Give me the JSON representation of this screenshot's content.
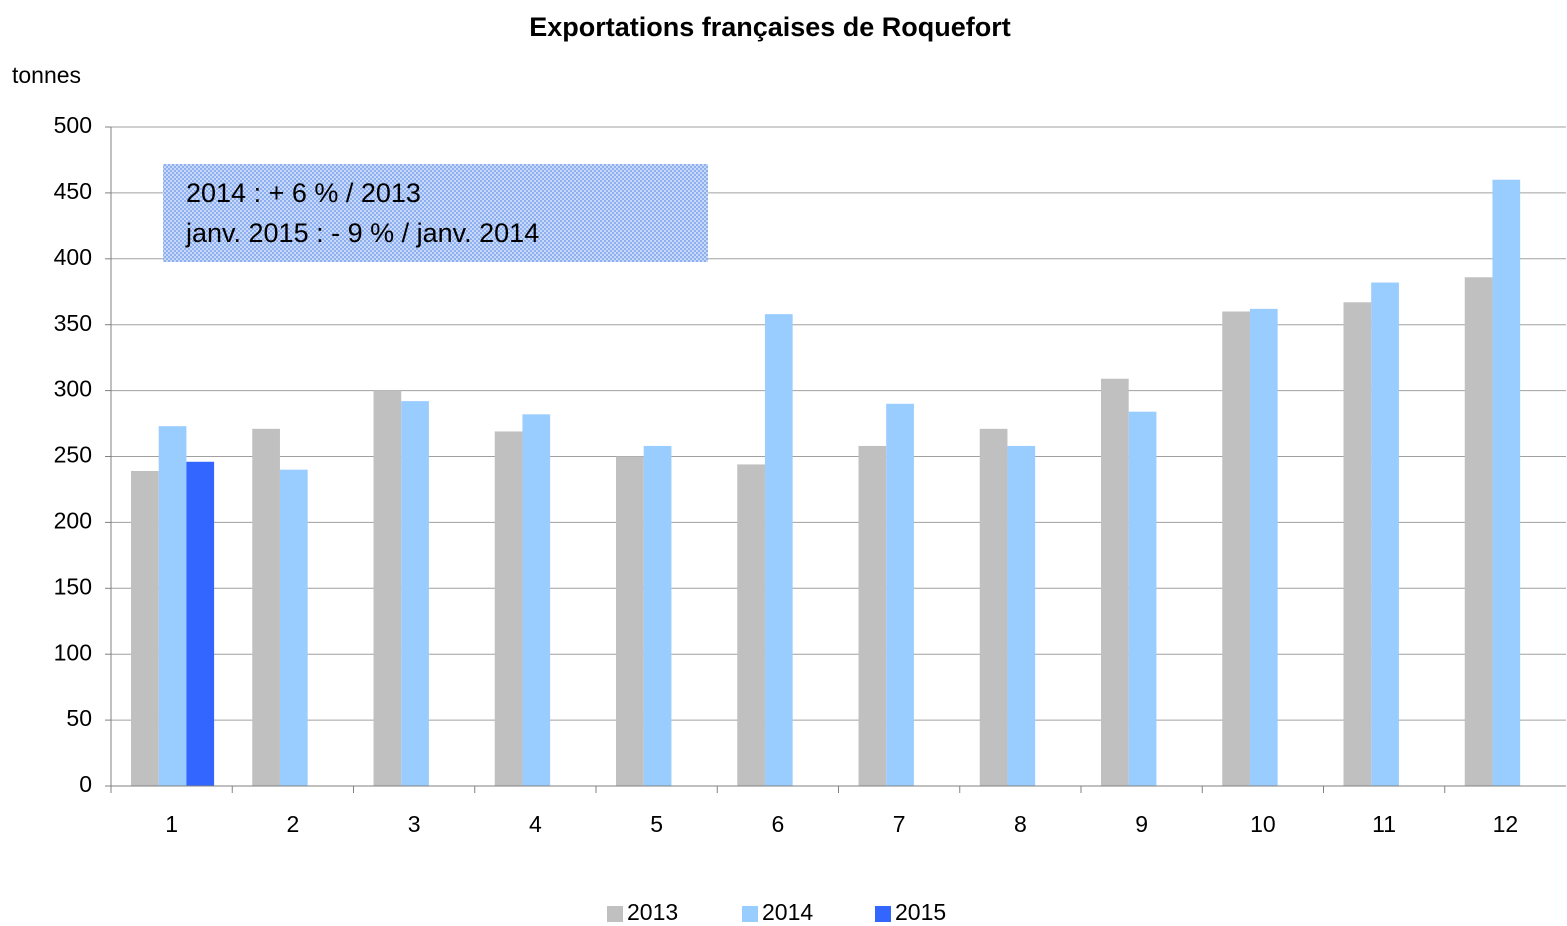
{
  "chart_data": {
    "type": "bar",
    "title": "Exportations françaises de Roquefort",
    "y_label": "tonnes",
    "annotations": [
      "2014 : + 6 % / 2013",
      "janv. 2015 : - 9 % / janv. 2014"
    ],
    "categories": [
      1,
      2,
      3,
      4,
      5,
      6,
      7,
      8,
      9,
      10,
      11,
      12
    ],
    "series": [
      {
        "name": "2013",
        "color": "#c0c0c0",
        "values": [
          239,
          271,
          300,
          269,
          250,
          244,
          258,
          271,
          309,
          360,
          367,
          386
        ]
      },
      {
        "name": "2014",
        "color": "#99ccff",
        "values": [
          273,
          240,
          292,
          282,
          258,
          358,
          290,
          258,
          284,
          362,
          382,
          460
        ]
      },
      {
        "name": "2015",
        "color": "#3366ff",
        "values": [
          246,
          null,
          null,
          null,
          null,
          null,
          null,
          null,
          null,
          null,
          null,
          null
        ]
      }
    ],
    "ylim": [
      0,
      500
    ],
    "yticks": [
      0,
      50,
      100,
      150,
      200,
      250,
      300,
      350,
      400,
      450,
      500
    ],
    "grid": true,
    "legend": "bottom"
  }
}
